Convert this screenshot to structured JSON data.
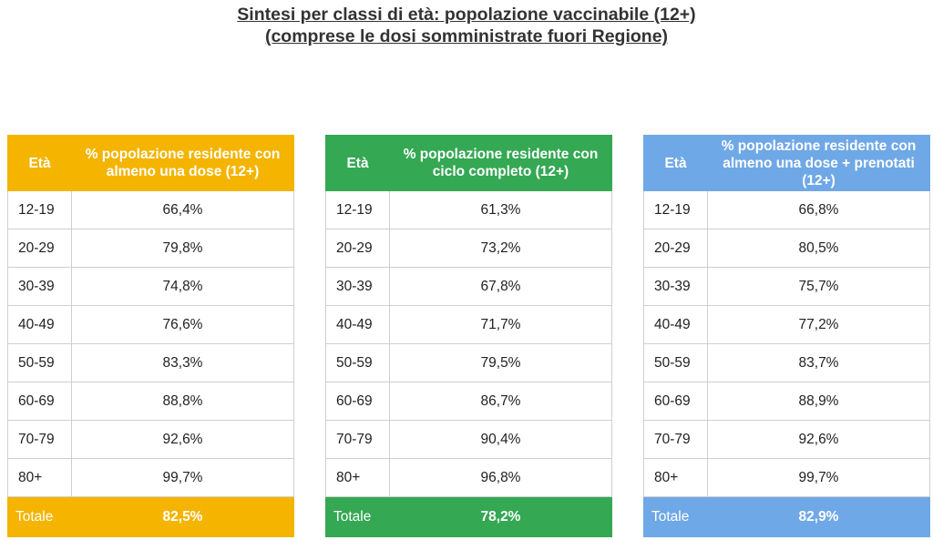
{
  "title": {
    "line1": "Sintesi per classi di età: popolazione vaccinabile (12+)",
    "line2": "(comprese le dosi somministrate fuori Regione)"
  },
  "tables": [
    {
      "header_age": "Età",
      "header_value": "% popolazione residente con almeno una dose (12+)",
      "rows": [
        {
          "age": "12-19",
          "value": "66,4%"
        },
        {
          "age": "20-29",
          "value": "79,8%"
        },
        {
          "age": "30-39",
          "value": "74,8%"
        },
        {
          "age": "40-49",
          "value": "76,6%"
        },
        {
          "age": "50-59",
          "value": "83,3%"
        },
        {
          "age": "60-69",
          "value": "88,8%"
        },
        {
          "age": "70-79",
          "value": "92,6%"
        },
        {
          "age": "80+",
          "value": "99,7%"
        }
      ],
      "total_label": "Totale",
      "total_value": "82,5%",
      "color": "#f4b400"
    },
    {
      "header_age": "Età",
      "header_value": "% popolazione residente con ciclo completo (12+)",
      "rows": [
        {
          "age": "12-19",
          "value": "61,3%"
        },
        {
          "age": "20-29",
          "value": "73,2%"
        },
        {
          "age": "30-39",
          "value": "67,8%"
        },
        {
          "age": "40-49",
          "value": "71,7%"
        },
        {
          "age": "50-59",
          "value": "79,5%"
        },
        {
          "age": "60-69",
          "value": "86,7%"
        },
        {
          "age": "70-79",
          "value": "90,4%"
        },
        {
          "age": "80+",
          "value": "96,8%"
        }
      ],
      "total_label": "Totale",
      "total_value": "78,2%",
      "color": "#34a853"
    },
    {
      "header_age": "Età",
      "header_value": "% popolazione residente con almeno una dose + prenotati (12+)",
      "rows": [
        {
          "age": "12-19",
          "value": "66,8%"
        },
        {
          "age": "20-29",
          "value": "80,5%"
        },
        {
          "age": "30-39",
          "value": "75,7%"
        },
        {
          "age": "40-49",
          "value": "77,2%"
        },
        {
          "age": "50-59",
          "value": "83,7%"
        },
        {
          "age": "60-69",
          "value": "88,9%"
        },
        {
          "age": "70-79",
          "value": "92,6%"
        },
        {
          "age": "80+",
          "value": "99,7%"
        }
      ],
      "total_label": "Totale",
      "total_value": "82,9%",
      "color": "#6fa8e6"
    }
  ]
}
